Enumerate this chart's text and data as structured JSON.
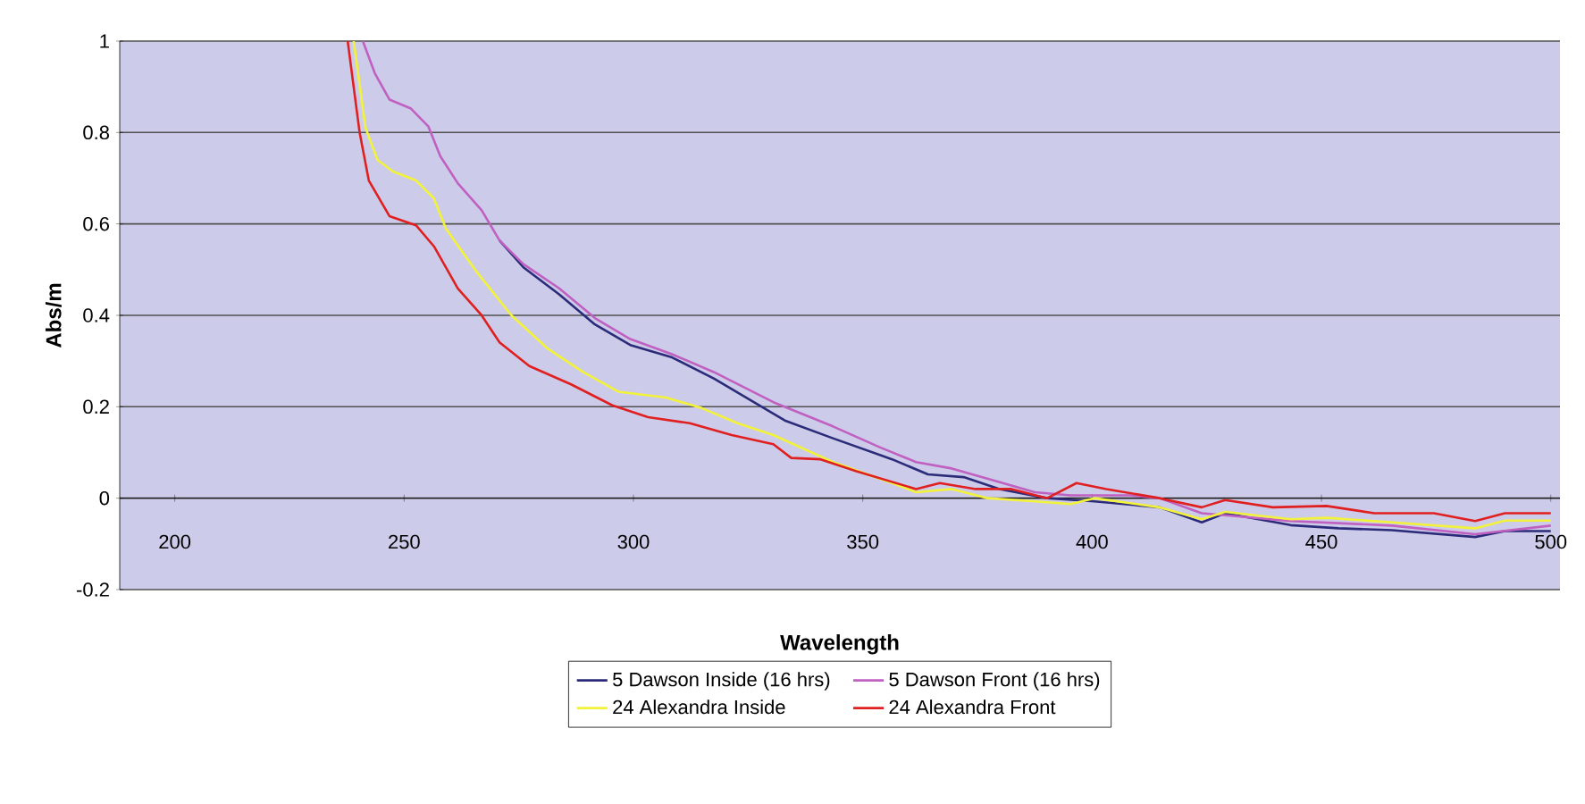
{
  "chart_data": {
    "type": "line",
    "xlabel": "Wavelength",
    "ylabel": "Abs/m",
    "xlim": [
      188,
      502
    ],
    "ylim": [
      -0.2,
      1
    ],
    "xticks": [
      200,
      250,
      300,
      350,
      400,
      450,
      500
    ],
    "yticks": [
      -0.2,
      0,
      0.2,
      0.4,
      0.6,
      0.8,
      1
    ],
    "grid": "y",
    "legend": "bottom",
    "marker": "none",
    "line_style": "solid",
    "series": [
      {
        "name": "5 Dawson Inside (16 hrs)",
        "color": "#2b2b7a",
        "x": [
          270.8,
          276,
          283.8,
          291.6,
          299.3,
          308.4,
          317.5,
          333,
          343.5,
          356.4,
          364.2,
          372,
          379.8,
          390.2,
          400.5,
          414.7,
          423.9,
          429,
          443.3,
          453.7,
          465.4,
          483.5,
          490,
          500
        ],
        "values": [
          0.564,
          0.505,
          0.446,
          0.38,
          0.335,
          0.308,
          0.262,
          0.17,
          0.131,
          0.085,
          0.052,
          0.046,
          0.02,
          0,
          -0.007,
          -0.02,
          -0.053,
          -0.033,
          -0.059,
          -0.066,
          -0.07,
          -0.085,
          -0.072,
          -0.072
        ]
      },
      {
        "name": "5 Dawson Front (16 hrs)",
        "color": "#c060c0",
        "x": [
          241,
          243.6,
          246.8,
          251.4,
          255.3,
          257.9,
          261.7,
          266.9,
          270.8,
          276,
          283.8,
          291.6,
          299.3,
          308.4,
          317.5,
          330.5,
          343.5,
          353.8,
          361.6,
          369.4,
          378.5,
          387.5,
          395.3,
          408.3,
          414.7,
          423.9,
          443.3,
          465.4,
          483.5,
          500
        ],
        "values": [
          1,
          0.93,
          0.872,
          0.853,
          0.813,
          0.748,
          0.689,
          0.63,
          0.564,
          0.512,
          0.459,
          0.394,
          0.348,
          0.315,
          0.276,
          0.21,
          0.157,
          0.111,
          0.079,
          0.065,
          0.039,
          0.013,
          0.006,
          0.006,
          0,
          -0.033,
          -0.05,
          -0.06,
          -0.079,
          -0.06
        ]
      },
      {
        "name": "24 Alexandra Inside",
        "color": "#f2f23a",
        "x": [
          239,
          241.6,
          244.2,
          247.5,
          252.6,
          256.5,
          259.1,
          265.6,
          273.4,
          281.2,
          289,
          296.7,
          307.1,
          314.9,
          322.7,
          330.5,
          343.5,
          356.4,
          361.6,
          369.4,
          377.2,
          387.5,
          395.3,
          400.5,
          414.7,
          423.9,
          429,
          443.3,
          451.1,
          465.4,
          483.5,
          490,
          500
        ],
        "values": [
          1,
          0.81,
          0.74,
          0.715,
          0.695,
          0.656,
          0.59,
          0.498,
          0.4,
          0.328,
          0.276,
          0.233,
          0.22,
          0.197,
          0.164,
          0.138,
          0.079,
          0.033,
          0.013,
          0.02,
          0,
          -0.007,
          -0.013,
          0,
          -0.02,
          -0.046,
          -0.03,
          -0.046,
          -0.043,
          -0.053,
          -0.066,
          -0.049,
          -0.049
        ]
      },
      {
        "name": "24 Alexandra Front",
        "color": "#e02020",
        "x": [
          237.7,
          240.3,
          242.3,
          246.8,
          252.6,
          256.5,
          261.7,
          266.9,
          270.8,
          277.3,
          286.4,
          295.4,
          303.2,
          312.3,
          321.4,
          330.5,
          334.4,
          340.8,
          348.6,
          361.6,
          366.8,
          374.6,
          382.4,
          390.2,
          396.6,
          403.1,
          414.7,
          423.9,
          429,
          439.4,
          451.1,
          461.5,
          474.5,
          483.5,
          490,
          500
        ],
        "values": [
          1,
          0.8,
          0.695,
          0.617,
          0.597,
          0.551,
          0.459,
          0.4,
          0.341,
          0.289,
          0.249,
          0.203,
          0.177,
          0.164,
          0.138,
          0.118,
          0.088,
          0.085,
          0.059,
          0.02,
          0.033,
          0.02,
          0.02,
          0,
          0.033,
          0.02,
          0,
          -0.02,
          -0.004,
          -0.02,
          -0.017,
          -0.033,
          -0.033,
          -0.05,
          -0.033,
          -0.033
        ]
      }
    ]
  }
}
